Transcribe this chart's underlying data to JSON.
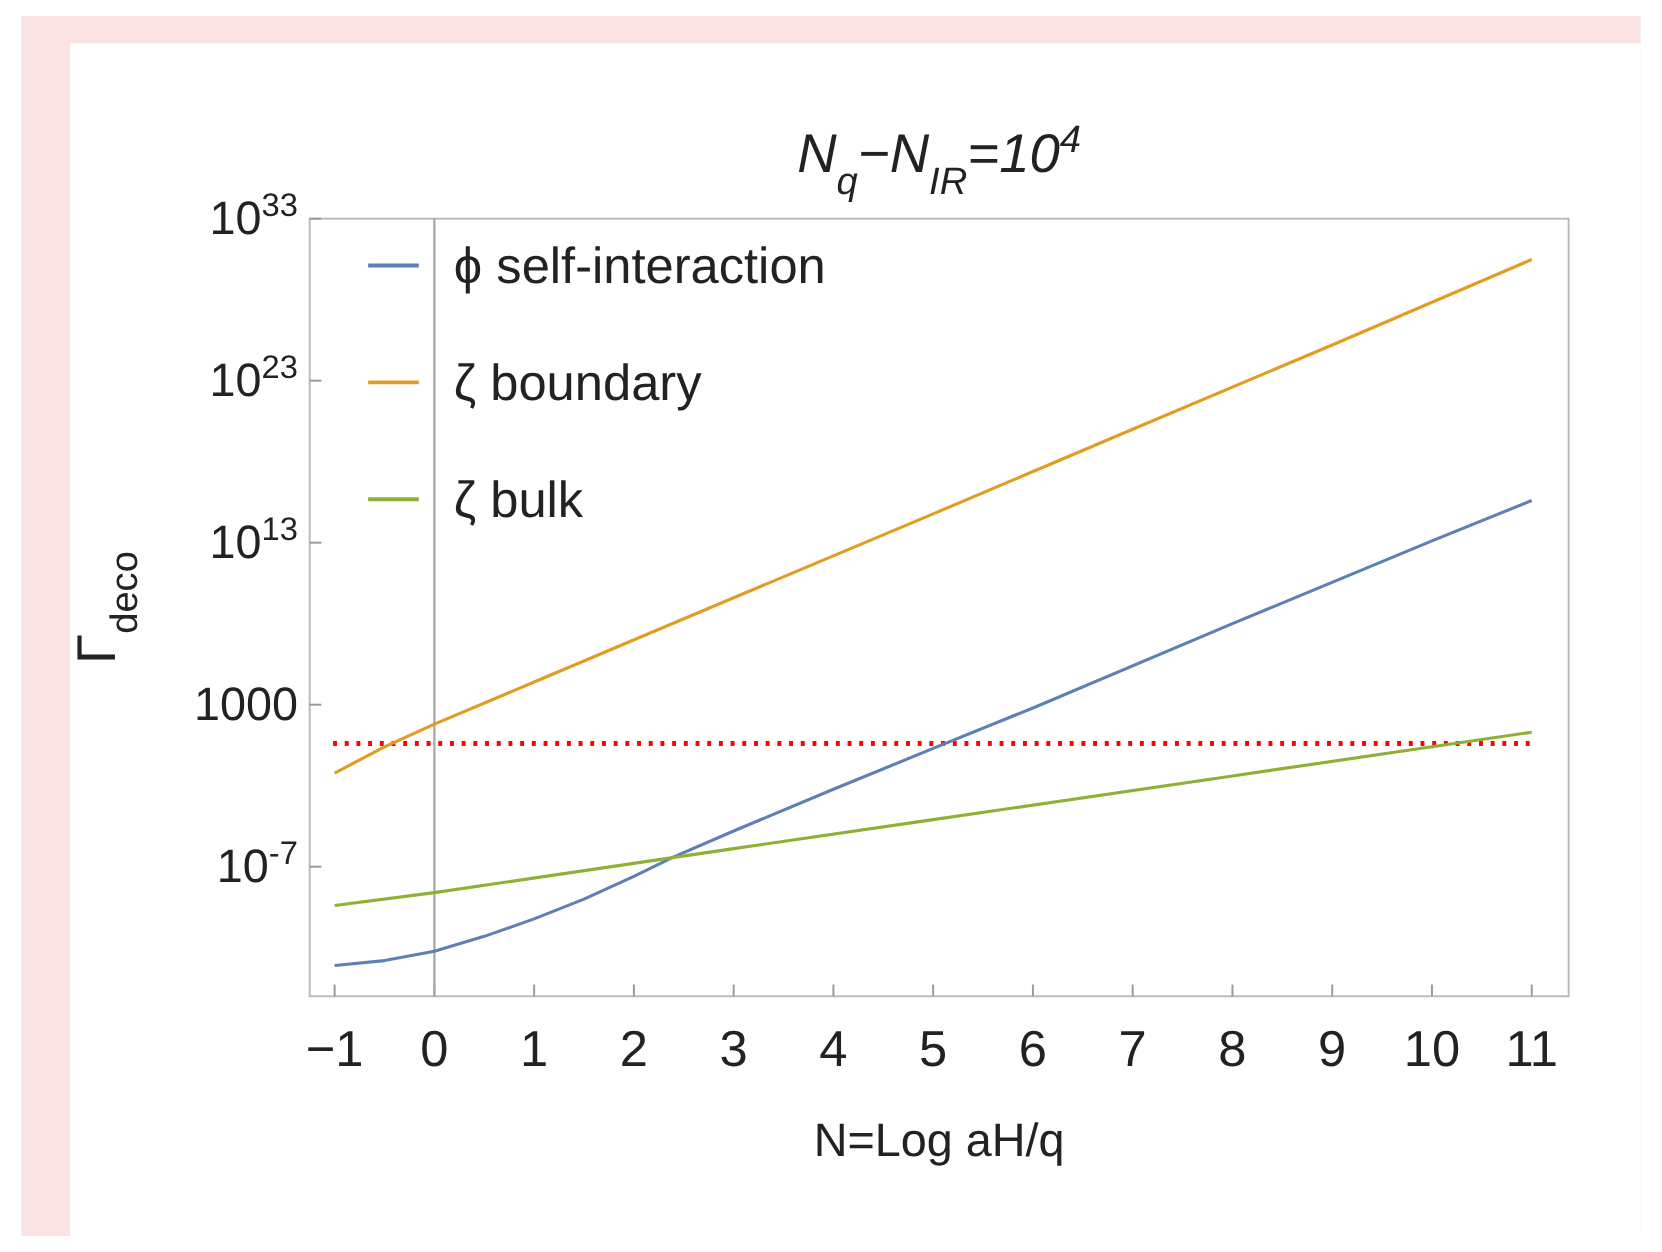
{
  "chart_data": {
    "type": "line",
    "title": "N$_{q}$−N$_{IR}$=10$^{4}$",
    "xlabel": "N=Log aH/q",
    "ylabel": "Γ$_{deco}$",
    "log": "y",
    "grid": false,
    "legend": "top left",
    "line_style": "solid",
    "marker": "none",
    "xlim": [
      -1.25,
      11.37
    ],
    "ylim": [
      1e-15,
      1e+33
    ],
    "xticks": [
      {
        "value": -1,
        "label": "−1"
      },
      0,
      1,
      2,
      3,
      4,
      5,
      6,
      7,
      8,
      9,
      10,
      11
    ],
    "yticks": [
      {
        "value": 1e-07,
        "label": "10$^{-7}$"
      },
      1000,
      {
        "value": 10000000000000.0,
        "label": "10$^{13}$"
      },
      {
        "value": 1e+23,
        "label": "10$^{23}$"
      },
      {
        "value": 1e+33,
        "label": "10$^{33}$"
      }
    ],
    "series": [
      {
        "name": "ϕ self-interaction",
        "color": "#5e81b5",
        "x": [
          -1,
          -0.5,
          0,
          0.5,
          1,
          1.5,
          2,
          2.4,
          3,
          4,
          5,
          6,
          8,
          10,
          11
        ],
        "values": [
          8e-14,
          1.6e-13,
          6e-13,
          5e-12,
          6e-11,
          1e-09,
          2.5e-08,
          4e-07,
          1.6e-05,
          0.006,
          2,
          630,
          100000000.0,
          13000000000000.0,
          4000000000000000.0
        ]
      },
      {
        "name": "ζ boundary",
        "color": "#e19c24",
        "x": [
          -1,
          -0.5,
          0,
          1,
          3,
          5,
          7,
          9,
          11
        ],
        "values": [
          0.06,
          2.5,
          63,
          25000.0,
          4000000000.0,
          600000000000000.0,
          1e+20,
          1.6e+25,
          3e+30
        ]
      },
      {
        "name": "ζ bulk",
        "color": "#8fb032",
        "x": [
          -1,
          0,
          3,
          5,
          8,
          11
        ],
        "values": [
          4e-10,
          2.5e-09,
          1.3e-06,
          8e-05,
          0.04,
          20
        ]
      }
    ],
    "ref_lines": [
      {
        "axis": "y",
        "value": 4,
        "color": "#ff0000",
        "line_style": "dotted"
      },
      {
        "axis": "x",
        "value": 0,
        "color": "#aaaaaa",
        "line_style": "solid"
      }
    ]
  }
}
